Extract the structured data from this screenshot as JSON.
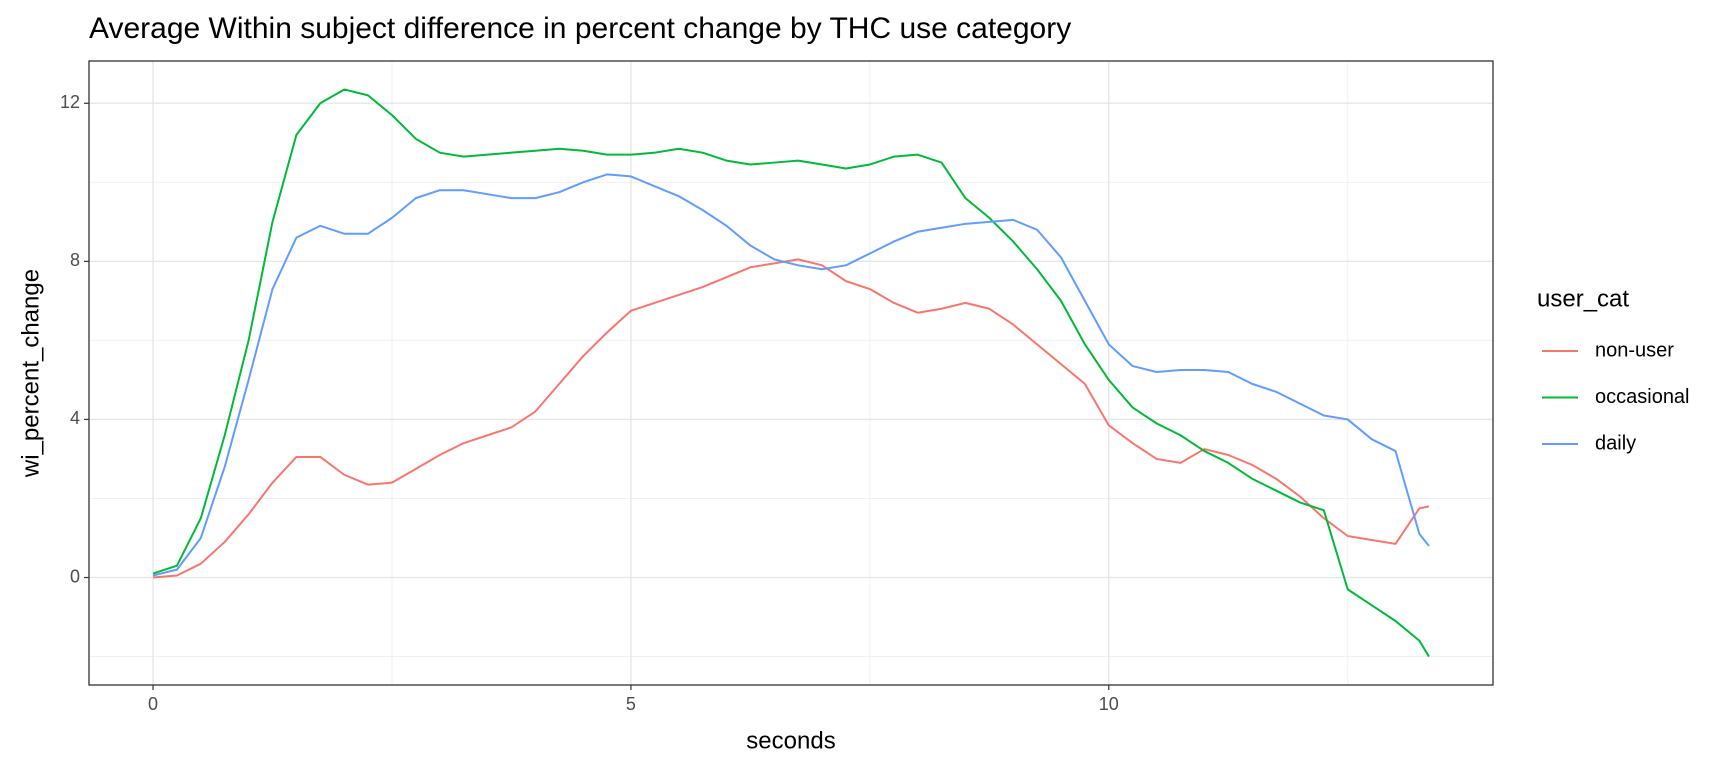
{
  "chart_data": {
    "type": "line",
    "title": "Average Within subject difference in percent change by THC use category",
    "x_label": "seconds",
    "y_label": "wi_percent_change",
    "legend_title": "user_cat",
    "legend_position": "right",
    "grid": true,
    "xlim": [
      -0.67,
      14.02
    ],
    "ylim": [
      -2.72,
      13.07
    ],
    "xticks": [
      0,
      5,
      10
    ],
    "yticks": [
      0,
      4,
      8,
      12
    ],
    "x_minor_grid": [
      2.5,
      7.5,
      12.5
    ],
    "y_minor_grid": [
      -2,
      2,
      6,
      10
    ],
    "x": [
      0,
      0.25,
      0.5,
      0.75,
      1,
      1.25,
      1.5,
      1.75,
      2,
      2.25,
      2.5,
      2.75,
      3,
      3.25,
      3.5,
      3.75,
      4,
      4.25,
      4.5,
      4.75,
      5,
      5.25,
      5.5,
      5.75,
      6,
      6.25,
      6.5,
      6.75,
      7,
      7.25,
      7.5,
      7.75,
      8,
      8.25,
      8.5,
      8.75,
      9,
      9.25,
      9.5,
      9.75,
      10,
      10.25,
      10.5,
      10.75,
      11,
      11.25,
      11.5,
      11.75,
      12,
      12.25,
      12.5,
      12.75,
      13,
      13.25,
      13.35
    ],
    "series": [
      {
        "name": "non-user",
        "color": "#F8766D",
        "values": [
          0,
          0.05,
          0.35,
          0.9,
          1.6,
          2.4,
          3.05,
          3.05,
          2.6,
          2.35,
          2.4,
          2.75,
          3.1,
          3.4,
          3.6,
          3.8,
          4.2,
          4.9,
          5.6,
          6.2,
          6.75,
          6.95,
          7.15,
          7.35,
          7.6,
          7.85,
          7.95,
          8.05,
          7.9,
          7.5,
          7.3,
          6.95,
          6.7,
          6.8,
          6.95,
          6.8,
          6.4,
          5.9,
          5.4,
          4.9,
          3.85,
          3.4,
          3.0,
          2.9,
          3.25,
          3.1,
          2.85,
          2.5,
          2.05,
          1.5,
          1.05,
          0.95,
          0.85,
          1.75,
          1.8
        ]
      },
      {
        "name": "occasional",
        "color": "#00BA38",
        "values": [
          0.1,
          0.3,
          1.5,
          3.6,
          6.0,
          9.0,
          11.2,
          12.0,
          12.35,
          12.2,
          11.7,
          11.1,
          10.75,
          10.65,
          10.7,
          10.75,
          10.8,
          10.85,
          10.8,
          10.7,
          10.7,
          10.75,
          10.85,
          10.75,
          10.55,
          10.45,
          10.5,
          10.55,
          10.45,
          10.35,
          10.45,
          10.65,
          10.7,
          10.5,
          9.6,
          9.1,
          8.5,
          7.8,
          7.0,
          5.9,
          5.0,
          4.3,
          3.9,
          3.6,
          3.2,
          2.9,
          2.5,
          2.2,
          1.9,
          1.7,
          -0.3,
          -0.7,
          -1.1,
          -1.6,
          -2.0
        ]
      },
      {
        "name": "daily",
        "color": "#619CFF",
        "values": [
          0.05,
          0.2,
          1.0,
          2.8,
          5.0,
          7.3,
          8.6,
          8.9,
          8.7,
          8.7,
          9.1,
          9.6,
          9.8,
          9.8,
          9.7,
          9.6,
          9.6,
          9.75,
          10.0,
          10.2,
          10.15,
          9.9,
          9.65,
          9.3,
          8.9,
          8.4,
          8.05,
          7.9,
          7.8,
          7.9,
          8.2,
          8.5,
          8.75,
          8.85,
          8.95,
          9.0,
          9.05,
          8.8,
          8.1,
          7.0,
          5.9,
          5.35,
          5.2,
          5.25,
          5.25,
          5.2,
          4.9,
          4.7,
          4.4,
          4.1,
          4.0,
          3.5,
          3.2,
          1.1,
          0.8
        ]
      }
    ]
  }
}
